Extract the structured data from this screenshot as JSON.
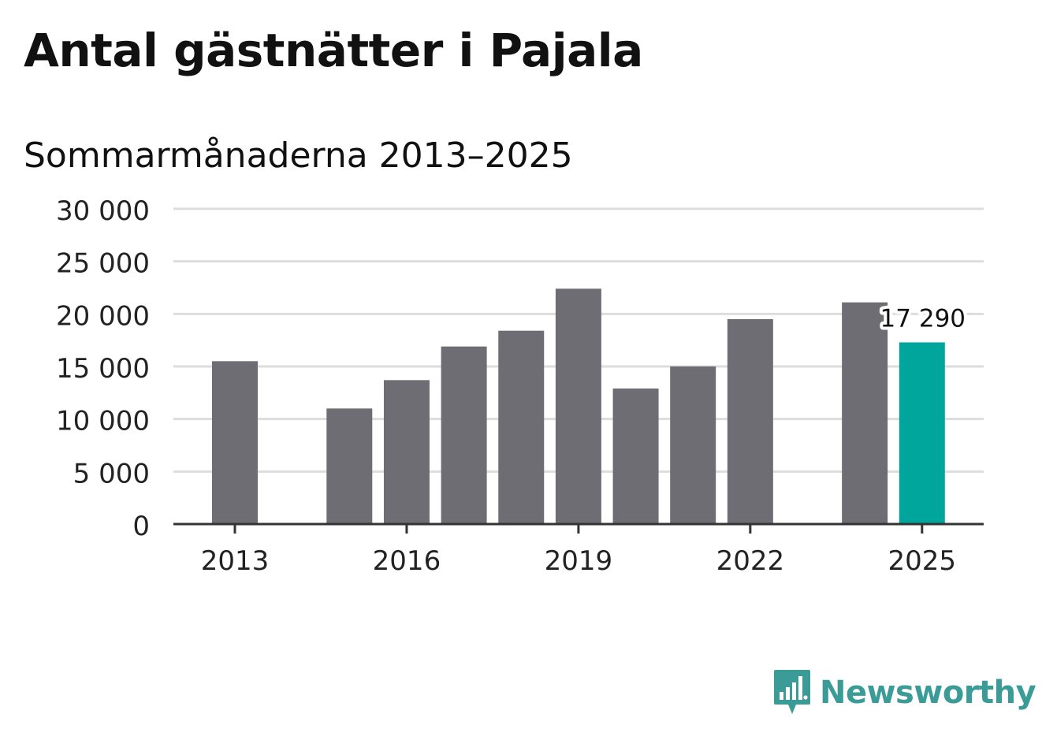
{
  "header": {
    "title": "Antal gästnätter i Pajala",
    "subtitle": "Sommarmånaderna 2013–2025"
  },
  "brand": {
    "name": "Newsworthy",
    "color": "#3b9b96"
  },
  "colors": {
    "bar": "#6e6d73",
    "highlight": "#00a69c",
    "grid": "#dddddd",
    "axis": "#333333"
  },
  "chart_data": {
    "type": "bar",
    "title": "Antal gästnätter i Pajala",
    "subtitle": "Sommarmånaderna 2013–2025",
    "xlabel": "",
    "ylabel": "",
    "categories": [
      "2013",
      "2014",
      "2015",
      "2016",
      "2017",
      "2018",
      "2019",
      "2020",
      "2021",
      "2022",
      "2023",
      "2024",
      "2025"
    ],
    "values": [
      15500,
      null,
      11000,
      13700,
      16900,
      18400,
      22400,
      12900,
      15000,
      19500,
      null,
      21100,
      17290
    ],
    "highlight_index": 12,
    "highlight_label": "17 290",
    "ylim": [
      0,
      30000
    ],
    "yticks": [
      0,
      5000,
      10000,
      15000,
      20000,
      25000,
      30000
    ],
    "ytick_labels": [
      "0",
      "5 000",
      "10 000",
      "15 000",
      "20 000",
      "25 000",
      "30 000"
    ],
    "xticks": [
      "2013",
      "2016",
      "2019",
      "2022",
      "2025"
    ],
    "grid": true,
    "legend": "none"
  }
}
